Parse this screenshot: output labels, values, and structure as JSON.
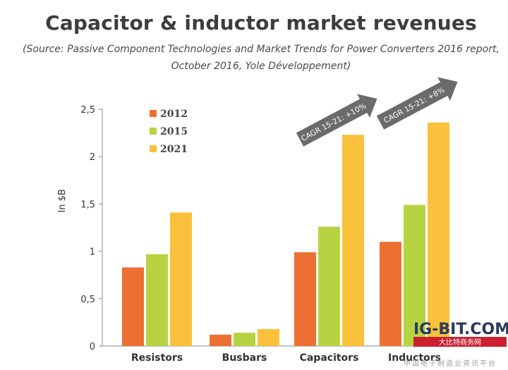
{
  "title": "Capacitor & inductor market revenues",
  "subtitle_line1": "(Source: Passive Component Technologies and Market Trends for Power Converters 2016 report,",
  "subtitle_line2": "October 2016, Yole Développement)",
  "chart_data": {
    "type": "bar",
    "categories": [
      "Resistors",
      "Busbars",
      "Capacitors",
      "Inductors"
    ],
    "series": [
      {
        "name": "2012",
        "values": [
          0.83,
          0.12,
          0.99,
          1.1
        ]
      },
      {
        "name": "2015",
        "values": [
          0.97,
          0.14,
          1.26,
          1.49
        ]
      },
      {
        "name": "2021",
        "values": [
          1.41,
          0.18,
          2.23,
          2.36
        ]
      }
    ],
    "ylabel": "In $B",
    "ylim": [
      0,
      2.5
    ],
    "yticks": [
      "0",
      "0,5",
      "1",
      "1,5",
      "2",
      "2,5"
    ],
    "ytick_values": [
      0,
      0.5,
      1,
      1.5,
      2,
      2.5
    ],
    "legend_position": "top-left",
    "grid": false,
    "colors": [
      "#ec7032",
      "#b8d341",
      "#fac13c"
    ],
    "annotations": [
      {
        "category": "Capacitors",
        "text": "CAGR 15-21: +10%"
      },
      {
        "category": "Inductors",
        "text": "CAGR 15-21: +8%"
      }
    ]
  },
  "watermark": {
    "main": "IG-BIT.COM",
    "sub": "大比特商务网",
    "sub2": "中国电子制造业资讯平台"
  }
}
